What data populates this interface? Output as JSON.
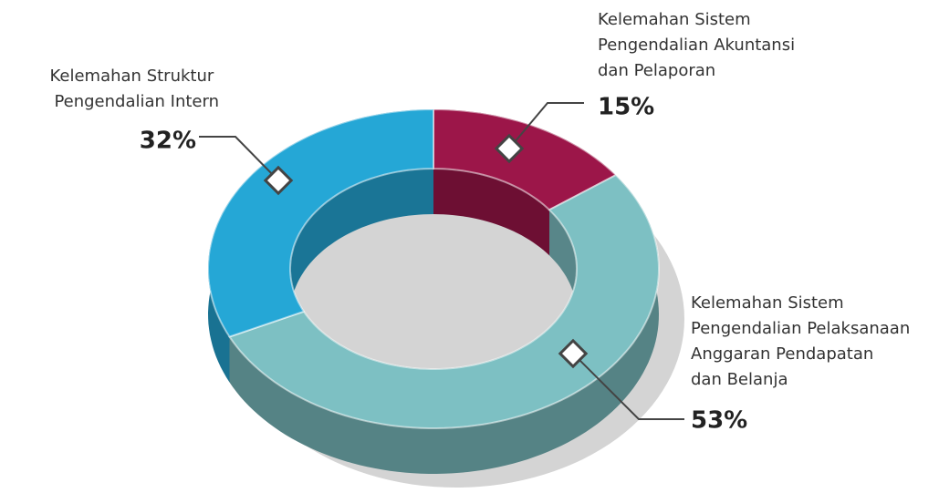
{
  "chart_data": {
    "type": "donut",
    "categories": [
      "Kelemahan Sistem Pengendalian Akuntansi dan Pelaporan",
      "Kelemahan Sistem Pengendalian Pelaksanaan Anggaran Pendapatan dan Belanja",
      "Kelemahan Struktur Pengendalian Intern"
    ],
    "values": [
      15,
      53,
      32
    ],
    "value_labels": [
      "15%",
      "53%",
      "32%"
    ],
    "colors": [
      "#9c1649",
      "#7dc0c3",
      "#25a7d6"
    ]
  }
}
